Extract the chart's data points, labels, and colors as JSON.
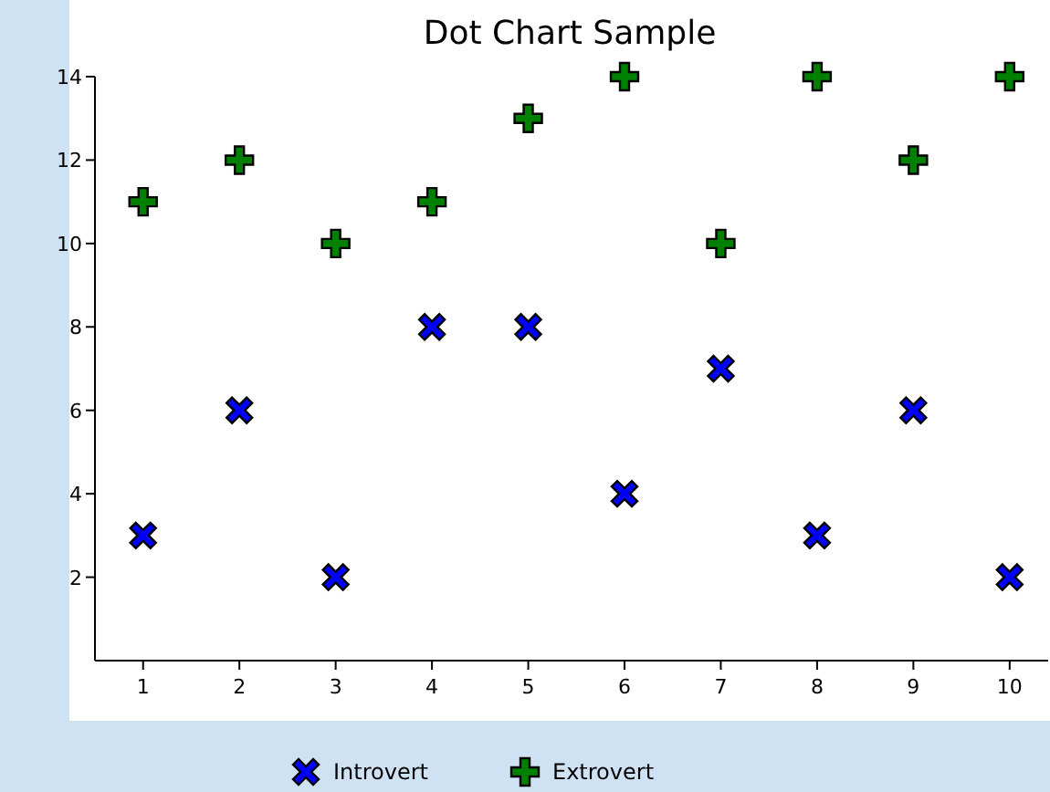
{
  "chart_data": {
    "type": "scatter",
    "title": "Dot Chart Sample",
    "x": [
      1,
      2,
      3,
      4,
      5,
      6,
      7,
      8,
      9,
      10
    ],
    "series": [
      {
        "name": "Introvert",
        "color": "#0000ff",
        "marker": "x",
        "values": [
          3,
          6,
          2,
          8,
          8,
          4,
          7,
          3,
          6,
          2
        ]
      },
      {
        "name": "Extrovert",
        "color": "#008000",
        "marker": "cross",
        "values": [
          11,
          12,
          10,
          11,
          13,
          14,
          10,
          14,
          12,
          14
        ]
      }
    ],
    "xlim": [
      0.5,
      10.4
    ],
    "xticks": [
      1,
      2,
      3,
      4,
      5,
      6,
      7,
      8,
      9,
      10
    ],
    "ylim": [
      0,
      14
    ],
    "yticks": [
      2,
      4,
      6,
      8,
      10,
      12,
      14
    ],
    "grid": false,
    "legend": "bottom"
  }
}
